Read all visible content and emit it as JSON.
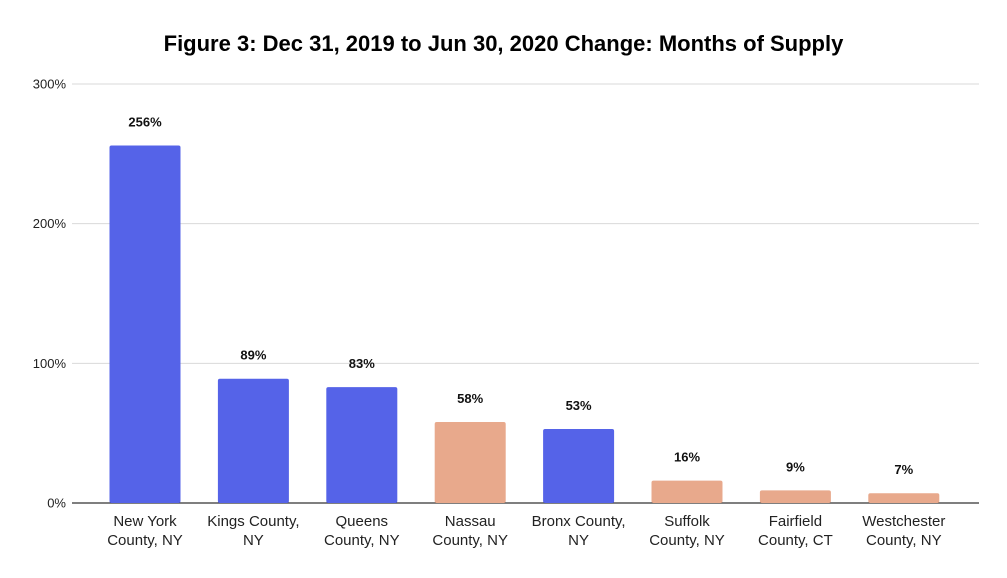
{
  "chart_data": {
    "type": "bar",
    "title": "Figure 3: Dec 31, 2019 to Jun 30, 2020 Change: Months of Supply",
    "xlabel": "",
    "ylabel": "",
    "categories": [
      [
        "New York",
        "County, NY"
      ],
      [
        "Kings County,",
        "NY"
      ],
      [
        "Queens",
        "County, NY"
      ],
      [
        "Nassau",
        "County, NY"
      ],
      [
        "Bronx County,",
        "NY"
      ],
      [
        "Suffolk",
        "County, NY"
      ],
      [
        "Fairfield",
        "County, CT"
      ],
      [
        "Westchester",
        "County, NY"
      ]
    ],
    "values": [
      256,
      89,
      83,
      58,
      53,
      16,
      9,
      7
    ],
    "data_labels": [
      "256%",
      "89%",
      "83%",
      "58%",
      "53%",
      "16%",
      "9%",
      "7%"
    ],
    "bar_colors": [
      "#5563e8",
      "#5563e8",
      "#5563e8",
      "#e8a98c",
      "#5563e8",
      "#e8a98c",
      "#e8a98c",
      "#e8a98c"
    ],
    "y_ticks": [
      0,
      100,
      200,
      300
    ],
    "y_tick_labels": [
      "0%",
      "100%",
      "200%",
      "300%"
    ],
    "ylim": [
      0,
      300
    ],
    "grid": true,
    "legend": "none"
  },
  "colors": {
    "blue": "#5563e8",
    "peach": "#e8a98c",
    "grid": "#d9d9d9",
    "axis": "#333333"
  }
}
